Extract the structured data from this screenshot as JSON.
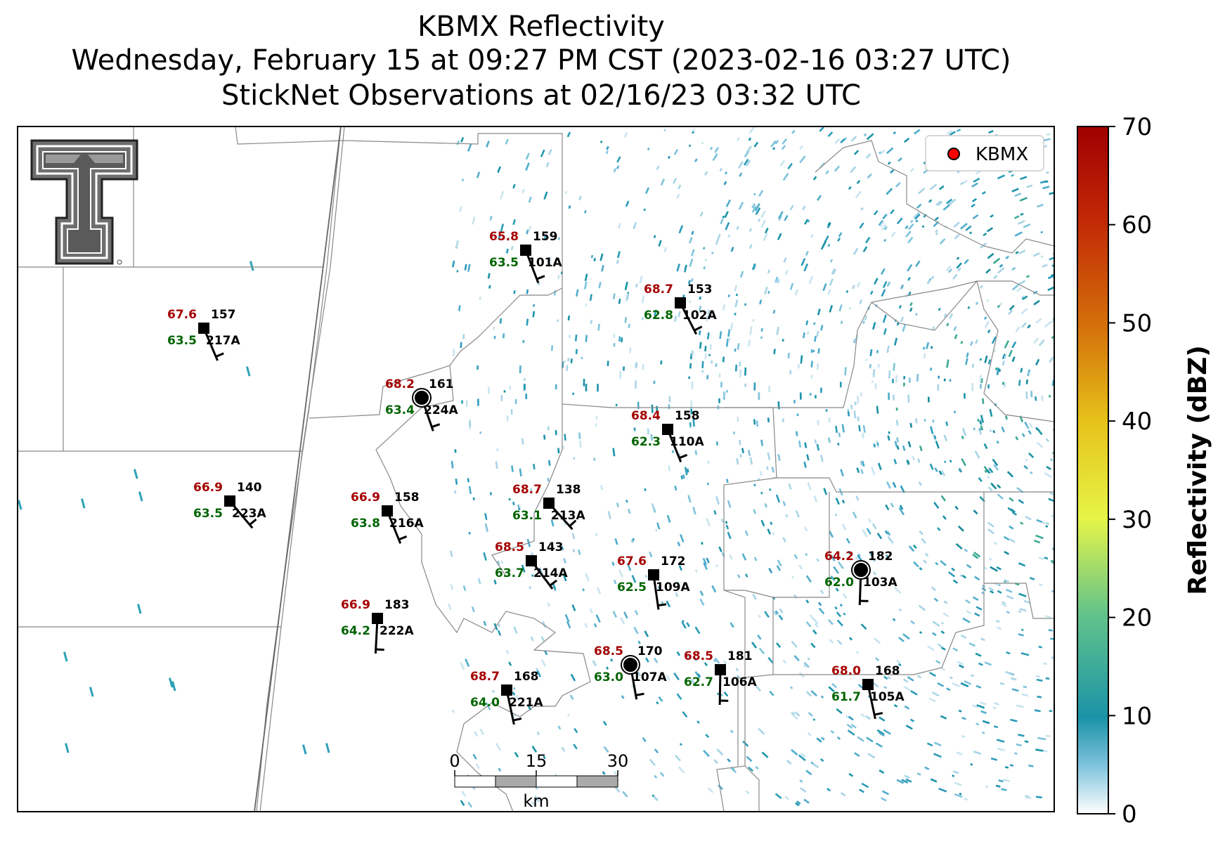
{
  "title": {
    "line1": "KBMX Reflectivity",
    "line2": "Wednesday, February 15 at 09:27 PM CST (2023-02-16 03:27 UTC)",
    "line3": "StickNet Observations at 02/16/23 03:32 UTC"
  },
  "legend": {
    "label": "KBMX",
    "marker_color": "#ff0000"
  },
  "colorbar": {
    "label": "Reflectivity (dBZ)",
    "min": 0,
    "max": 70,
    "ticks": [
      "0",
      "10",
      "20",
      "30",
      "40",
      "50",
      "60",
      "70"
    ],
    "stops": [
      "#ffffff",
      "#7fc3dc",
      "#1a93a8",
      "#62c38a",
      "#e6f547",
      "#e6c21a",
      "#d4700a",
      "#c22a06",
      "#a00000"
    ]
  },
  "scalebar": {
    "ticks": [
      "0",
      "15",
      "30"
    ],
    "unit": "km"
  },
  "stations": [
    {
      "id": "101A",
      "temp": "65.8",
      "dew": "63.5",
      "dir": "159",
      "shape": "square"
    },
    {
      "id": "102A",
      "temp": "68.7",
      "dew": "62.8",
      "dir": "153",
      "shape": "square"
    },
    {
      "id": "217A",
      "temp": "67.6",
      "dew": "63.5",
      "dir": "157",
      "shape": "square"
    },
    {
      "id": "224A",
      "temp": "68.2",
      "dew": "63.4",
      "dir": "161",
      "shape": "circle"
    },
    {
      "id": "110A",
      "temp": "68.4",
      "dew": "62.3",
      "dir": "158",
      "shape": "square"
    },
    {
      "id": "223A",
      "temp": "66.9",
      "dew": "63.5",
      "dir": "140",
      "shape": "square"
    },
    {
      "id": "216A",
      "temp": "66.9",
      "dew": "63.8",
      "dir": "158",
      "shape": "square"
    },
    {
      "id": "213A",
      "temp": "68.7",
      "dew": "63.1",
      "dir": "138",
      "shape": "square"
    },
    {
      "id": "214A",
      "temp": "68.5",
      "dew": "63.7",
      "dir": "143",
      "shape": "square"
    },
    {
      "id": "109A",
      "temp": "67.6",
      "dew": "62.5",
      "dir": "172",
      "shape": "square"
    },
    {
      "id": "103A",
      "temp": "64.2",
      "dew": "62.0",
      "dir": "182",
      "shape": "circle"
    },
    {
      "id": "222A",
      "temp": "66.9",
      "dew": "64.2",
      "dir": "183",
      "shape": "square"
    },
    {
      "id": "107A",
      "temp": "68.5",
      "dew": "63.0",
      "dir": "170",
      "shape": "circle"
    },
    {
      "id": "106A",
      "temp": "68.5",
      "dew": "62.7",
      "dir": "181",
      "shape": "square"
    },
    {
      "id": "221A",
      "temp": "68.7",
      "dew": "64.0",
      "dir": "168",
      "shape": "square"
    },
    {
      "id": "105A",
      "temp": "68.0",
      "dew": "61.7",
      "dir": "168",
      "shape": "square"
    }
  ]
}
